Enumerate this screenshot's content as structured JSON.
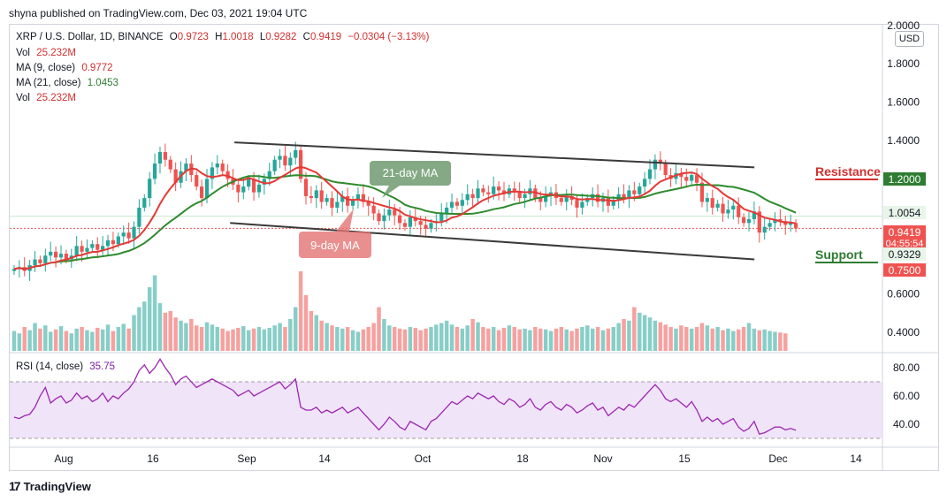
{
  "header": {
    "published": "shyna published on TradingView.com, Dec 03, 2021 19:04 UTC",
    "symbol": "XRP / U.S. Dollar, 1D, BINANCE",
    "o_label": "O",
    "o": "0.9723",
    "h_label": "H",
    "h": "1.0018",
    "l_label": "L",
    "l": "0.9282",
    "c_label": "C",
    "c": "0.9419",
    "change": "−0.0304 (−3.13%)",
    "vol_label": "Vol",
    "vol": "25.232M",
    "ma9_label": "MA (9, close)",
    "ma9": "0.9772",
    "ma21_label": "MA (21, close)",
    "ma21": "1.0453",
    "vol2_label": "Vol",
    "vol2": "25.232M",
    "rsi_label": "RSI (14, close)",
    "rsi": "35.75"
  },
  "currency": "USD",
  "branding": "TradingView",
  "colors": {
    "up": "#26a69a",
    "down": "#ef5350",
    "ma9": "#e53935",
    "ma21": "#2e8b2e",
    "rsi": "#9c27b0",
    "rsi_band": "#ead9f7",
    "trendline": "#3a3a3a",
    "resistance": "#d32f2f",
    "support": "#2e7d32"
  },
  "annotations": {
    "ma21_callout": "21-day MA",
    "ma9_callout": "9-day MA",
    "resistance": "Resistance",
    "support": "Support"
  },
  "chart_data": [
    {
      "type": "candlestick",
      "title": "XRP / U.S. Dollar, 1D, BINANCE",
      "x_ticks": [
        "Aug",
        "16",
        "Sep",
        "14",
        "Oct",
        "18",
        "Nov",
        "15",
        "Dec",
        "14"
      ],
      "y_ticks": [
        "2.0000",
        "1.8000",
        "1.6000",
        "1.4000",
        "1.2000",
        "1.0054",
        "0.9419",
        "0.9329",
        "0.7500",
        "0.6000",
        "0.4000"
      ],
      "ylim": [
        0.3,
        2.05
      ],
      "price_labels": [
        {
          "value": 1.2,
          "text": "1.2000",
          "color": "#2e7d32"
        },
        {
          "value": 1.0054,
          "text": "1.0054",
          "color": "#e8f5e9"
        },
        {
          "value": 0.9419,
          "text": "0.9419",
          "sub": "04:55:54",
          "color": "#ef5350"
        },
        {
          "value": 0.9329,
          "text": "0.9329",
          "color": "#e8f5e9"
        },
        {
          "value": 0.75,
          "text": "0.7500",
          "color": "#ef5350"
        }
      ],
      "closes": [
        0.73,
        0.74,
        0.72,
        0.75,
        0.78,
        0.76,
        0.8,
        0.82,
        0.79,
        0.81,
        0.78,
        0.8,
        0.85,
        0.82,
        0.84,
        0.86,
        0.83,
        0.85,
        0.88,
        0.86,
        0.9,
        0.92,
        0.89,
        0.95,
        1.05,
        1.1,
        1.2,
        1.28,
        1.34,
        1.3,
        1.25,
        1.18,
        1.24,
        1.28,
        1.22,
        1.16,
        1.1,
        1.2,
        1.26,
        1.28,
        1.24,
        1.2,
        1.17,
        1.13,
        1.16,
        1.2,
        1.13,
        1.17,
        1.2,
        1.24,
        1.3,
        1.32,
        1.27,
        1.31,
        1.35,
        1.2,
        1.11,
        1.1,
        1.14,
        1.08,
        1.1,
        1.05,
        1.08,
        1.11,
        1.06,
        1.09,
        1.12,
        1.08,
        1.06,
        1.02,
        0.98,
        1.01,
        1.04,
        1.01,
        0.97,
        0.95,
        1.0,
        0.98,
        0.96,
        0.94,
        0.97,
        0.98,
        1.02,
        1.05,
        1.08,
        1.06,
        1.09,
        1.12,
        1.1,
        1.15,
        1.13,
        1.12,
        1.16,
        1.14,
        1.12,
        1.15,
        1.13,
        1.1,
        1.12,
        1.15,
        1.1,
        1.08,
        1.11,
        1.13,
        1.1,
        1.08,
        1.11,
        1.09,
        1.05,
        1.08,
        1.1,
        1.12,
        1.08,
        1.1,
        1.06,
        1.09,
        1.12,
        1.1,
        1.14,
        1.12,
        1.16,
        1.2,
        1.25,
        1.3,
        1.28,
        1.22,
        1.2,
        1.23,
        1.21,
        1.19,
        1.22,
        1.18,
        1.08,
        1.1,
        1.05,
        1.07,
        1.02,
        1.04,
        1.06,
        1.0,
        0.97,
        0.99,
        1.03,
        0.92,
        0.95,
        0.97,
        0.99,
        0.98,
        0.96,
        0.97,
        0.9419
      ],
      "ma9_label": "MA (9, close)",
      "ma21_label": "MA (21, close)",
      "volume": [
        0.25,
        0.22,
        0.3,
        0.26,
        0.35,
        0.28,
        0.32,
        0.24,
        0.27,
        0.31,
        0.25,
        0.22,
        0.28,
        0.3,
        0.26,
        0.24,
        0.29,
        0.27,
        0.33,
        0.25,
        0.3,
        0.34,
        0.28,
        0.45,
        0.55,
        0.62,
        0.8,
        0.95,
        0.6,
        0.48,
        0.5,
        0.42,
        0.38,
        0.35,
        0.4,
        0.32,
        0.3,
        0.36,
        0.33,
        0.3,
        0.28,
        0.25,
        0.27,
        0.29,
        0.31,
        0.26,
        0.28,
        0.3,
        0.27,
        0.29,
        0.32,
        0.35,
        0.3,
        0.4,
        0.55,
        1.0,
        0.7,
        0.5,
        0.45,
        0.38,
        0.35,
        0.32,
        0.3,
        0.28,
        0.3,
        0.26,
        0.24,
        0.27,
        0.3,
        0.35,
        0.55,
        0.4,
        0.32,
        0.3,
        0.28,
        0.27,
        0.3,
        0.29,
        0.26,
        0.28,
        0.3,
        0.33,
        0.35,
        0.38,
        0.33,
        0.3,
        0.28,
        0.32,
        0.4,
        0.36,
        0.3,
        0.28,
        0.3,
        0.26,
        0.29,
        0.32,
        0.3,
        0.27,
        0.28,
        0.26,
        0.3,
        0.28,
        0.27,
        0.25,
        0.28,
        0.3,
        0.27,
        0.25,
        0.28,
        0.3,
        0.32,
        0.28,
        0.3,
        0.26,
        0.28,
        0.3,
        0.35,
        0.4,
        0.38,
        0.55,
        0.48,
        0.45,
        0.42,
        0.38,
        0.36,
        0.33,
        0.3,
        0.28,
        0.32,
        0.3,
        0.28,
        0.3,
        0.35,
        0.32,
        0.28,
        0.3,
        0.26,
        0.28,
        0.25,
        0.27,
        0.3,
        0.35,
        0.28,
        0.26,
        0.27,
        0.25,
        0.24,
        0.23,
        0.22
      ],
      "channel": {
        "upper": [
          [
            0.258,
            1.39
          ],
          [
            0.855,
            1.26
          ]
        ],
        "lower": [
          [
            0.253,
            0.97
          ],
          [
            0.855,
            0.78
          ]
        ]
      },
      "resistance": 1.2,
      "support": 0.75
    },
    {
      "type": "line",
      "title": "RSI (14, close)",
      "ylim": [
        25,
        90
      ],
      "y_ticks": [
        "80.00",
        "60.00",
        "40.00"
      ],
      "band": [
        30,
        70
      ],
      "values": [
        45,
        44,
        46,
        47,
        52,
        60,
        66,
        55,
        58,
        60,
        55,
        57,
        62,
        58,
        60,
        56,
        58,
        62,
        56,
        60,
        58,
        62,
        65,
        70,
        78,
        82,
        76,
        80,
        86,
        80,
        75,
        68,
        72,
        74,
        70,
        66,
        68,
        70,
        72,
        70,
        68,
        66,
        64,
        60,
        62,
        64,
        60,
        62,
        64,
        66,
        68,
        70,
        65,
        68,
        72,
        52,
        50,
        50,
        52,
        48,
        50,
        48,
        50,
        52,
        48,
        50,
        52,
        48,
        44,
        40,
        36,
        40,
        45,
        42,
        38,
        36,
        42,
        40,
        38,
        36,
        42,
        44,
        48,
        52,
        56,
        54,
        57,
        60,
        58,
        62,
        60,
        58,
        60,
        56,
        54,
        58,
        56,
        52,
        54,
        58,
        52,
        50,
        54,
        56,
        52,
        50,
        54,
        52,
        48,
        50,
        53,
        55,
        50,
        52,
        46,
        49,
        52,
        50,
        54,
        52,
        56,
        60,
        64,
        68,
        64,
        58,
        56,
        58,
        55,
        52,
        56,
        50,
        42,
        45,
        42,
        44,
        40,
        42,
        44,
        38,
        35,
        37,
        42,
        33,
        34,
        36,
        38,
        38,
        36,
        37,
        35.75
      ],
      "x_ticks": [
        "Aug",
        "16",
        "Sep",
        "14",
        "Oct",
        "18",
        "Nov",
        "15",
        "Dec",
        "14"
      ]
    }
  ]
}
